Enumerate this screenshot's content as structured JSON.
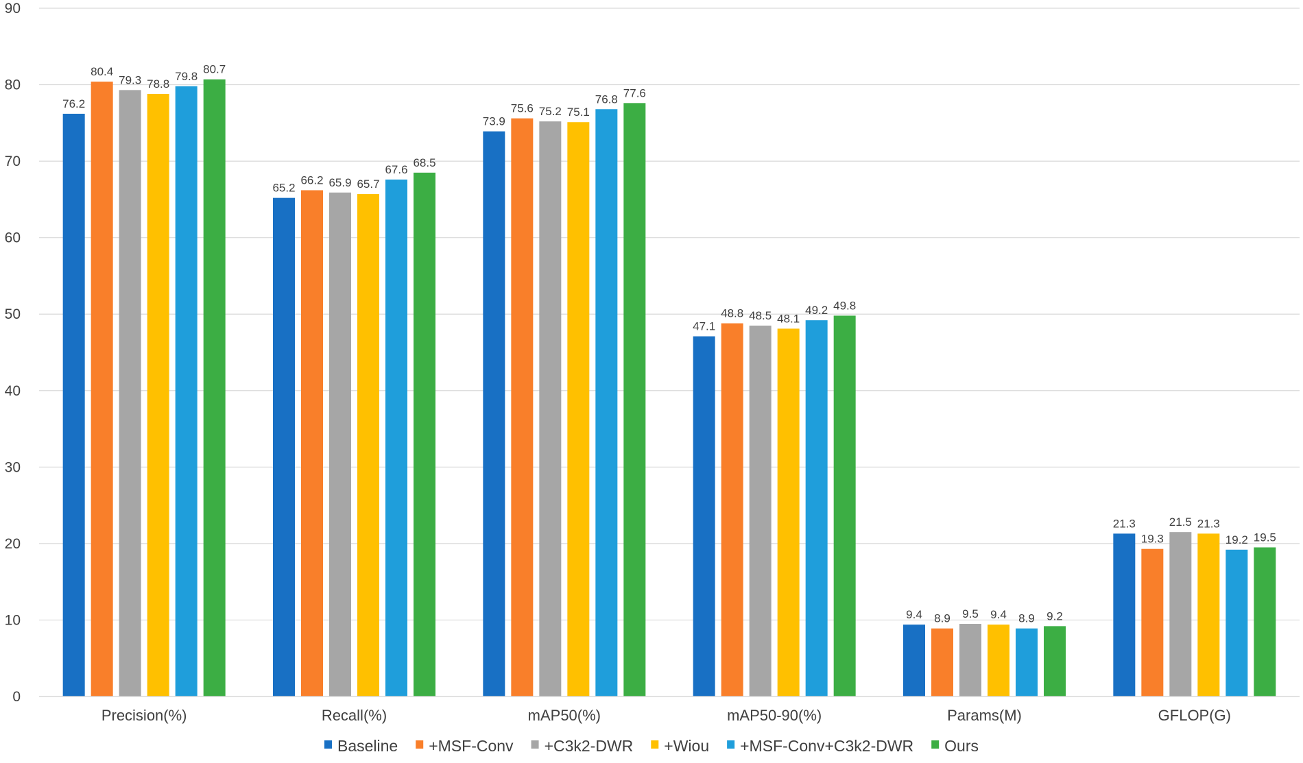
{
  "chart_data": {
    "type": "bar",
    "title": "",
    "xlabel": "",
    "ylabel": "",
    "ylim": [
      0,
      90
    ],
    "yticks": [
      0,
      10,
      20,
      30,
      40,
      50,
      60,
      70,
      80,
      90
    ],
    "grid": true,
    "legend_position": "bottom",
    "categories": [
      "Precision(%)",
      "Recall(%)",
      "mAP50(%)",
      "mAP50-90(%)",
      "Params(M)",
      "GFLOP(G)"
    ],
    "series": [
      {
        "name": "Baseline",
        "color": "#1870C4",
        "values": [
          76.2,
          65.2,
          73.9,
          47.1,
          9.4,
          21.3
        ]
      },
      {
        "name": "+MSF-Conv",
        "color": "#F97F2A",
        "values": [
          80.4,
          66.2,
          75.6,
          48.8,
          8.9,
          19.3
        ]
      },
      {
        "name": "+C3k2-DWR",
        "color": "#A6A6A6",
        "values": [
          79.3,
          65.9,
          75.2,
          48.5,
          9.5,
          21.5
        ]
      },
      {
        "name": "+Wiou",
        "color": "#FFC000",
        "values": [
          78.8,
          65.7,
          75.1,
          48.1,
          9.4,
          21.3
        ]
      },
      {
        "name": "+MSF-Conv+C3k2-DWR",
        "color": "#1F9EDB",
        "values": [
          79.8,
          67.6,
          76.8,
          49.2,
          8.9,
          19.2
        ]
      },
      {
        "name": "Ours",
        "color": "#3CAE44",
        "values": [
          80.7,
          68.5,
          77.6,
          49.8,
          9.2,
          19.5
        ]
      }
    ]
  }
}
